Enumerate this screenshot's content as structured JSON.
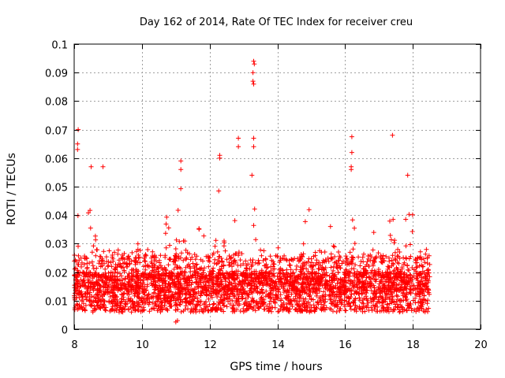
{
  "chart_data": {
    "type": "scatter",
    "title": "Day 162 of 2014, Rate Of TEC Index for receiver creu",
    "xlabel": "GPS time / hours",
    "ylabel": "ROTI / TECUs",
    "xlim": [
      8,
      20
    ],
    "ylim": [
      0,
      0.1
    ],
    "xticks": [
      8,
      10,
      12,
      14,
      16,
      18,
      20
    ],
    "xtick_labels": [
      "8",
      "10",
      "12",
      "14",
      "16",
      "18",
      "20"
    ],
    "yticks": [
      0,
      0.01,
      0.02,
      0.03,
      0.04,
      0.05,
      0.06,
      0.07,
      0.08,
      0.09,
      0.1
    ],
    "ytick_labels": [
      "0",
      "0.01",
      "0.02",
      "0.03",
      "0.04",
      "0.05",
      "0.06",
      "0.07",
      "0.08",
      "0.09",
      "0.1"
    ],
    "grid": true,
    "marker": "+",
    "color": "#ff0000",
    "data_extent": {
      "x_start": 8.0,
      "x_end": 18.5
    },
    "notable_points": [
      {
        "x": 8.12,
        "y": 0.07
      },
      {
        "x": 8.1,
        "y": 0.065
      },
      {
        "x": 8.1,
        "y": 0.063
      },
      {
        "x": 8.5,
        "y": 0.057
      },
      {
        "x": 8.85,
        "y": 0.057
      },
      {
        "x": 11.15,
        "y": 0.059
      },
      {
        "x": 11.15,
        "y": 0.056
      },
      {
        "x": 12.3,
        "y": 0.061
      },
      {
        "x": 12.3,
        "y": 0.06
      },
      {
        "x": 12.85,
        "y": 0.067
      },
      {
        "x": 12.85,
        "y": 0.064
      },
      {
        "x": 13.3,
        "y": 0.094
      },
      {
        "x": 13.32,
        "y": 0.093
      },
      {
        "x": 13.28,
        "y": 0.09
      },
      {
        "x": 13.28,
        "y": 0.087
      },
      {
        "x": 13.3,
        "y": 0.086
      },
      {
        "x": 13.3,
        "y": 0.067
      },
      {
        "x": 13.3,
        "y": 0.064
      },
      {
        "x": 13.25,
        "y": 0.054
      },
      {
        "x": 16.2,
        "y": 0.0675
      },
      {
        "x": 16.2,
        "y": 0.062
      },
      {
        "x": 16.18,
        "y": 0.057
      },
      {
        "x": 16.18,
        "y": 0.056
      },
      {
        "x": 17.4,
        "y": 0.068
      },
      {
        "x": 17.85,
        "y": 0.054
      },
      {
        "x": 11.0,
        "y": 0.0025
      },
      {
        "x": 11.05,
        "y": 0.003
      }
    ],
    "bursts": [
      {
        "center": 8.15,
        "width": 0.25,
        "peak": 0.045
      },
      {
        "center": 8.5,
        "width": 0.2,
        "peak": 0.05
      },
      {
        "center": 8.85,
        "width": 0.15,
        "peak": 0.045
      },
      {
        "center": 9.9,
        "width": 0.2,
        "peak": 0.037
      },
      {
        "center": 10.75,
        "width": 0.15,
        "peak": 0.042
      },
      {
        "center": 11.15,
        "width": 0.2,
        "peak": 0.05
      },
      {
        "center": 11.75,
        "width": 0.15,
        "peak": 0.045
      },
      {
        "center": 12.3,
        "width": 0.2,
        "peak": 0.05
      },
      {
        "center": 12.75,
        "width": 0.25,
        "peak": 0.04
      },
      {
        "center": 13.3,
        "width": 0.15,
        "peak": 0.05
      },
      {
        "center": 14.0,
        "width": 0.3,
        "peak": 0.03
      },
      {
        "center": 14.9,
        "width": 0.25,
        "peak": 0.043
      },
      {
        "center": 15.6,
        "width": 0.2,
        "peak": 0.042
      },
      {
        "center": 16.2,
        "width": 0.2,
        "peak": 0.046
      },
      {
        "center": 16.8,
        "width": 0.15,
        "peak": 0.044
      },
      {
        "center": 17.35,
        "width": 0.2,
        "peak": 0.044
      },
      {
        "center": 17.85,
        "width": 0.2,
        "peak": 0.043
      },
      {
        "center": 18.0,
        "width": 0.15,
        "peak": 0.049
      }
    ]
  }
}
